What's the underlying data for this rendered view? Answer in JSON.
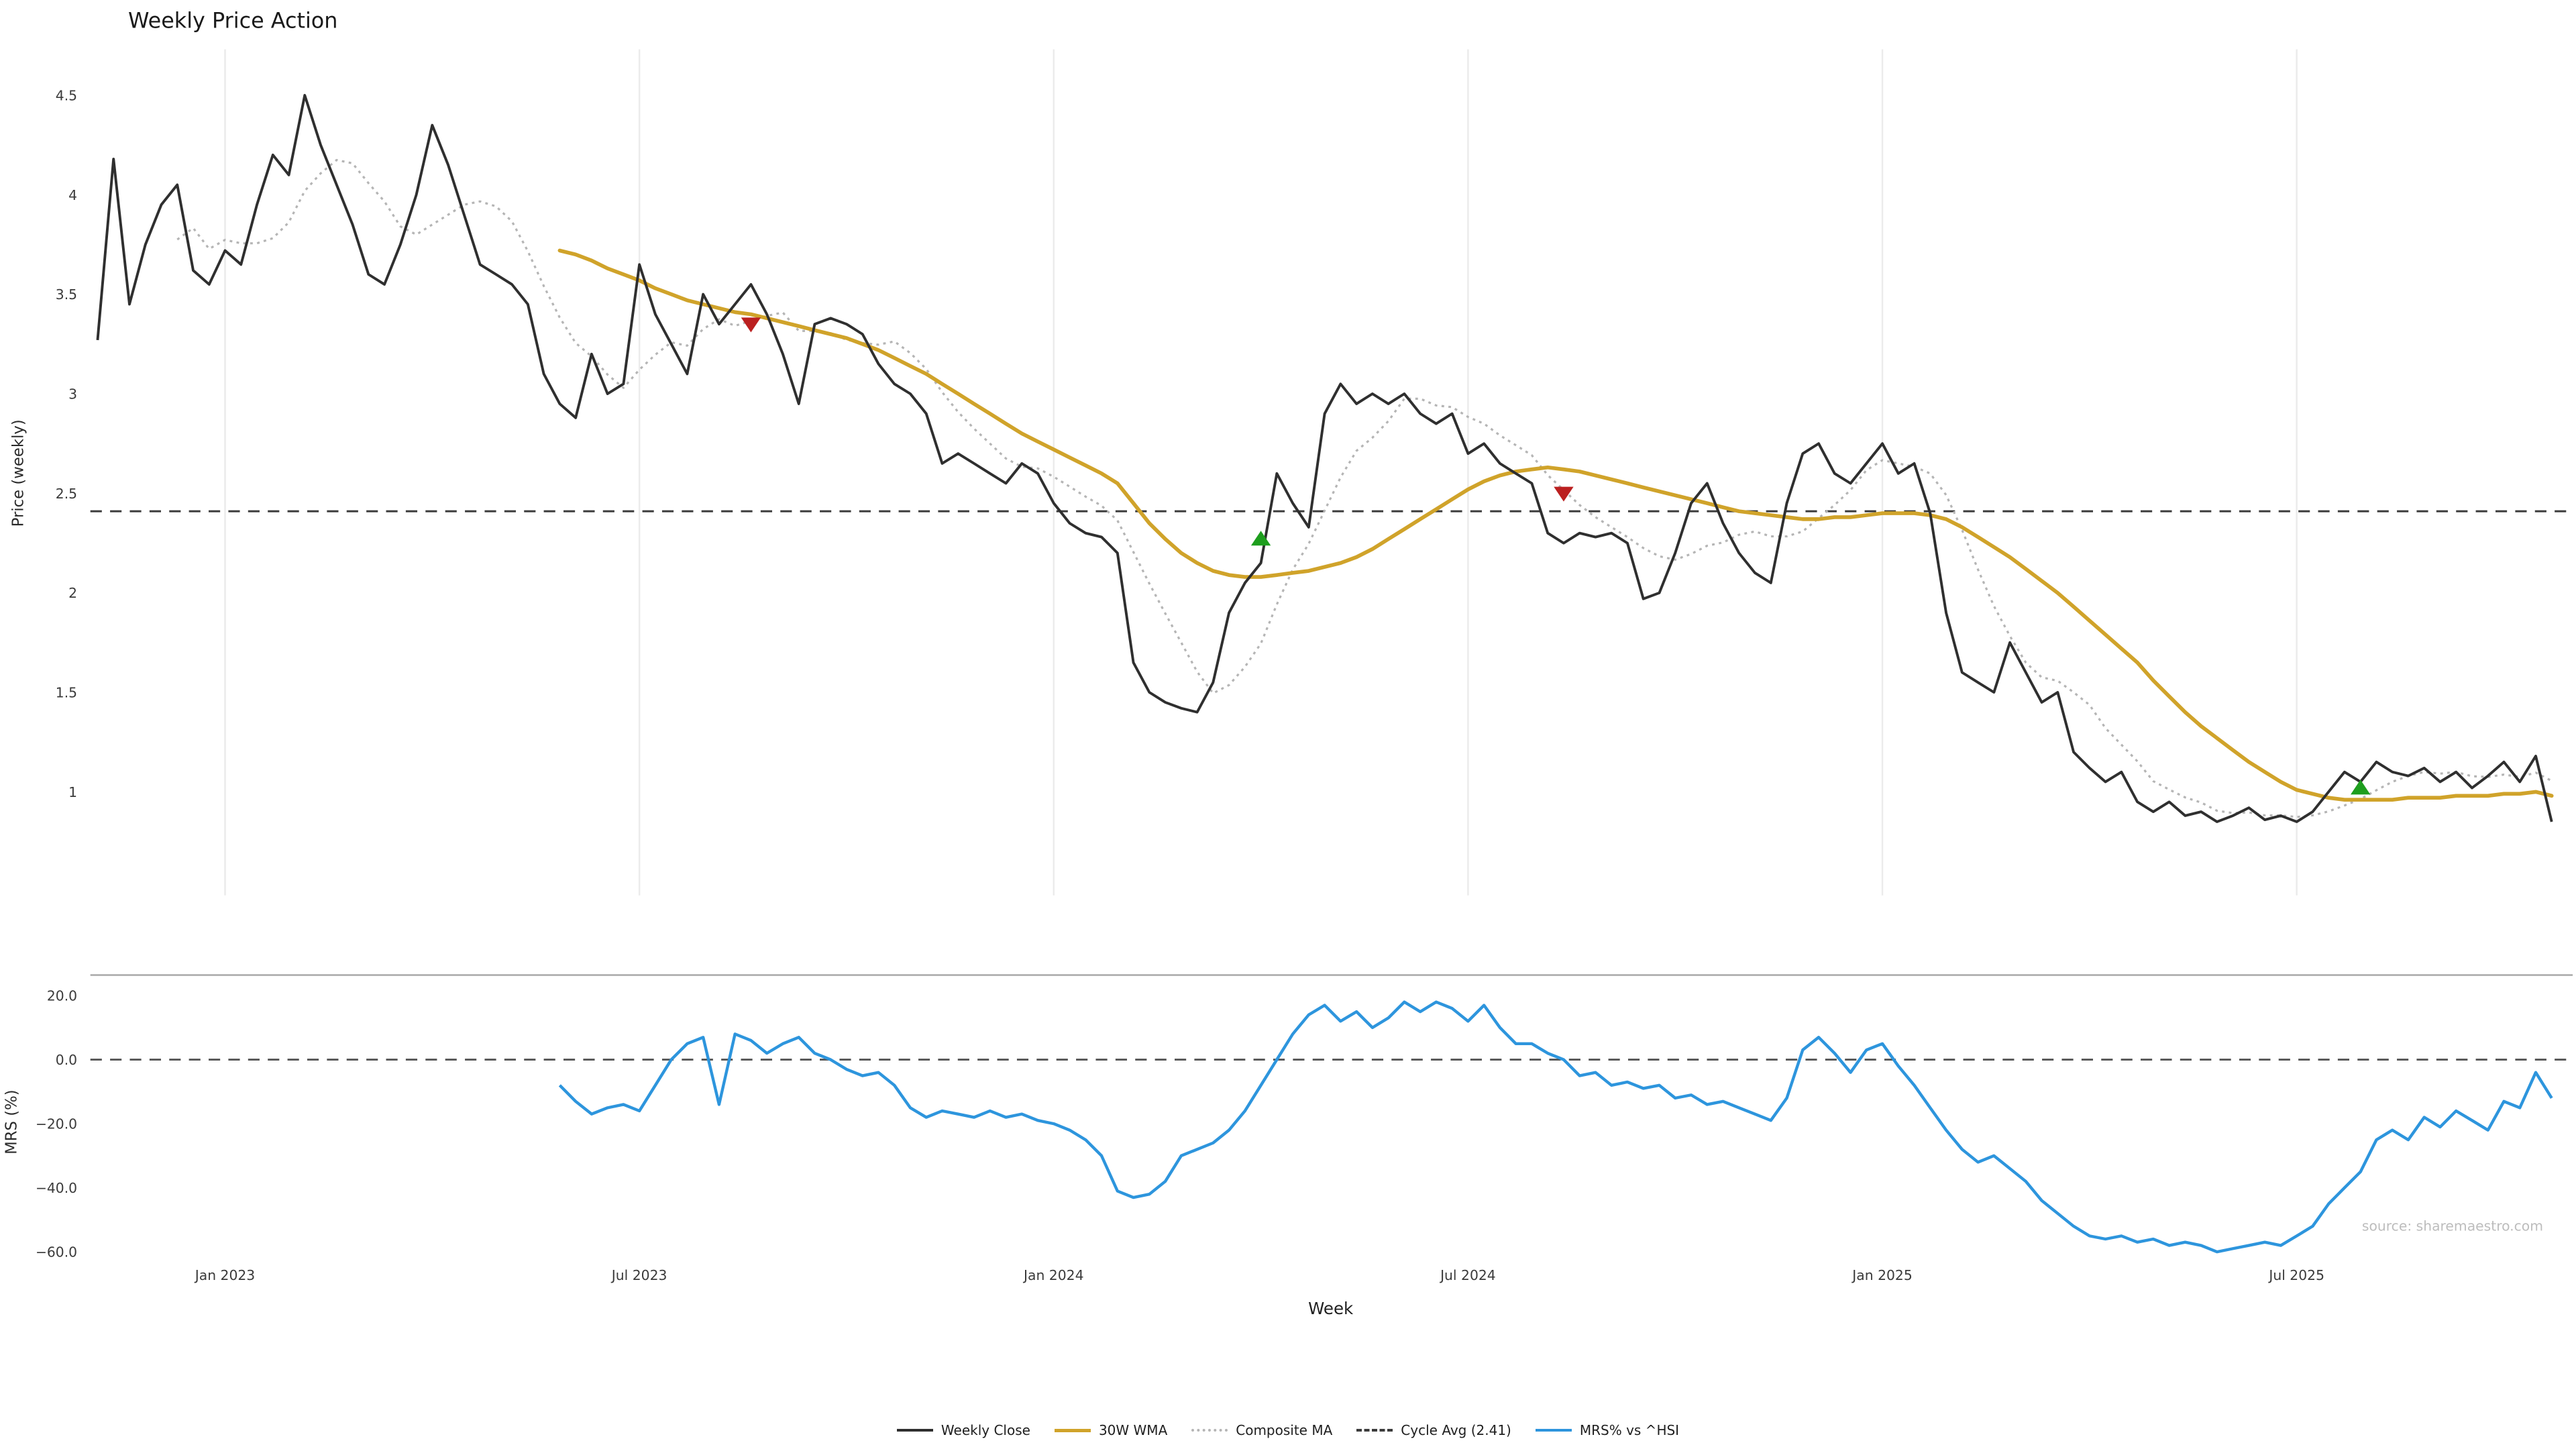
{
  "chart_data": {
    "type": "line",
    "title": "Weekly Price Action",
    "xlabel": "Week",
    "source": "source: sharemaestro.com",
    "colors": {
      "buy": "#1e9e1e",
      "sell": "#bb2020",
      "grid": "#ebebeb",
      "dashed": "#3c3c3c"
    },
    "x_ticks": [
      {
        "label": "Jan 2023",
        "week": 8
      },
      {
        "label": "Jul 2023",
        "week": 34
      },
      {
        "label": "Jan 2024",
        "week": 60
      },
      {
        "label": "Jul 2024",
        "week": 86
      },
      {
        "label": "Jan 2025",
        "week": 112
      },
      {
        "label": "Jul 2025",
        "week": 138
      }
    ],
    "weeks_total": 155,
    "panels": [
      {
        "name": "price",
        "ylabel": "Price (weekly)",
        "ylim": [
          0.5,
          4.7
        ],
        "yticks": [
          {
            "value": 4.5,
            "label": "4.5"
          },
          {
            "value": 4.0,
            "label": "4"
          },
          {
            "value": 3.5,
            "label": "3.5"
          },
          {
            "value": 3.0,
            "label": "3"
          },
          {
            "value": 2.5,
            "label": "2.5"
          },
          {
            "value": 2.0,
            "label": "2"
          },
          {
            "value": 1.5,
            "label": "1.5"
          },
          {
            "value": 1.0,
            "label": "1"
          }
        ],
        "cycle_avg": {
          "value": 2.41,
          "label": "Cycle Avg (2.41)"
        },
        "series": [
          {
            "name": "Weekly Close",
            "color": "#2f2f2f",
            "style": "solid",
            "start_week": 0,
            "values": [
              3.27,
              4.18,
              3.45,
              3.75,
              3.95,
              4.05,
              3.62,
              3.55,
              3.72,
              3.65,
              3.95,
              4.2,
              4.1,
              4.5,
              4.25,
              4.05,
              3.85,
              3.6,
              3.55,
              3.75,
              4.0,
              4.35,
              4.15,
              3.9,
              3.65,
              3.6,
              3.55,
              3.45,
              3.1,
              2.95,
              2.88,
              3.2,
              3.0,
              3.05,
              3.65,
              3.4,
              3.25,
              3.1,
              3.5,
              3.35,
              3.45,
              3.55,
              3.4,
              3.2,
              2.95,
              3.35,
              3.38,
              3.35,
              3.3,
              3.15,
              3.05,
              3.0,
              2.9,
              2.65,
              2.7,
              2.65,
              2.6,
              2.55,
              2.65,
              2.6,
              2.45,
              2.35,
              2.3,
              2.28,
              2.2,
              1.65,
              1.5,
              1.45,
              1.42,
              1.4,
              1.55,
              1.9,
              2.05,
              2.15,
              2.6,
              2.45,
              2.33,
              2.9,
              3.05,
              2.95,
              3.0,
              2.95,
              3.0,
              2.9,
              2.85,
              2.9,
              2.7,
              2.75,
              2.65,
              2.6,
              2.55,
              2.3,
              2.25,
              2.3,
              2.28,
              2.3,
              2.25,
              1.97,
              2.0,
              2.2,
              2.45,
              2.55,
              2.35,
              2.2,
              2.1,
              2.05,
              2.45,
              2.7,
              2.75,
              2.6,
              2.55,
              2.65,
              2.75,
              2.6,
              2.65,
              2.4,
              1.9,
              1.6,
              1.55,
              1.5,
              1.75,
              1.6,
              1.45,
              1.5,
              1.2,
              1.12,
              1.05,
              1.1,
              0.95,
              0.9,
              0.95,
              0.88,
              0.9,
              0.85,
              0.88,
              0.92,
              0.86,
              0.88,
              0.85,
              0.9,
              1.0,
              1.1,
              1.05,
              1.15,
              1.1,
              1.08,
              1.12,
              1.05,
              1.1,
              1.02,
              1.08,
              1.15,
              1.05,
              1.18,
              0.85
            ]
          },
          {
            "name": "30W WMA",
            "color": "#d0a32a",
            "style": "solid",
            "start_week": 29,
            "values": [
              3.72,
              3.7,
              3.67,
              3.63,
              3.6,
              3.57,
              3.53,
              3.5,
              3.47,
              3.45,
              3.43,
              3.41,
              3.4,
              3.38,
              3.36,
              3.34,
              3.32,
              3.3,
              3.28,
              3.25,
              3.22,
              3.18,
              3.14,
              3.1,
              3.05,
              3.0,
              2.95,
              2.9,
              2.85,
              2.8,
              2.76,
              2.72,
              2.68,
              2.64,
              2.6,
              2.55,
              2.45,
              2.35,
              2.27,
              2.2,
              2.15,
              2.11,
              2.09,
              2.08,
              2.08,
              2.09,
              2.1,
              2.11,
              2.13,
              2.15,
              2.18,
              2.22,
              2.27,
              2.32,
              2.37,
              2.42,
              2.47,
              2.52,
              2.56,
              2.59,
              2.61,
              2.62,
              2.63,
              2.62,
              2.61,
              2.59,
              2.57,
              2.55,
              2.53,
              2.51,
              2.49,
              2.47,
              2.45,
              2.43,
              2.41,
              2.4,
              2.39,
              2.38,
              2.37,
              2.37,
              2.38,
              2.38,
              2.39,
              2.4,
              2.4,
              2.4,
              2.39,
              2.37,
              2.33,
              2.28,
              2.23,
              2.18,
              2.12,
              2.06,
              2.0,
              1.93,
              1.86,
              1.79,
              1.72,
              1.65,
              1.56,
              1.48,
              1.4,
              1.33,
              1.27,
              1.21,
              1.15,
              1.1,
              1.05,
              1.01,
              0.99,
              0.97,
              0.96,
              0.96,
              0.96,
              0.96,
              0.97,
              0.97,
              0.97,
              0.98,
              0.98,
              0.98,
              0.99,
              0.99,
              1.0,
              0.98
            ]
          },
          {
            "name": "Composite MA",
            "color": "#b5b5b5",
            "style": "dotted",
            "derived_from": "Weekly Close",
            "window": 6
          }
        ],
        "markers": [
          {
            "type": "sell",
            "shape": "triangle-down",
            "week": 41,
            "value": 3.35
          },
          {
            "type": "buy",
            "shape": "triangle-up",
            "week": 73,
            "value": 2.27
          },
          {
            "type": "sell",
            "shape": "triangle-down",
            "week": 92,
            "value": 2.5
          },
          {
            "type": "buy",
            "shape": "triangle-up",
            "week": 142,
            "value": 1.02
          }
        ]
      },
      {
        "name": "mrs",
        "ylabel": "MRS (%)",
        "ylim": [
          -65,
          25
        ],
        "yticks": [
          {
            "value": 20,
            "label": "20.0"
          },
          {
            "value": 0,
            "label": "0.0"
          },
          {
            "value": -20,
            "label": "−20.0"
          },
          {
            "value": -40,
            "label": "−40.0"
          },
          {
            "value": -60,
            "label": "−60.0"
          }
        ],
        "zero_line": {
          "value": 0
        },
        "series": [
          {
            "name": "MRS% vs ^HSI",
            "color": "#2d95dd",
            "style": "solid",
            "start_week": 29,
            "values": [
              -8,
              -13,
              -17,
              -15,
              -14,
              -16,
              -8,
              0,
              5,
              7,
              -14,
              8,
              6,
              2,
              5,
              7,
              2,
              0,
              -3,
              -5,
              -4,
              -8,
              -15,
              -18,
              -16,
              -17,
              -18,
              -16,
              -18,
              -17,
              -19,
              -20,
              -22,
              -25,
              -30,
              -41,
              -43,
              -42,
              -38,
              -30,
              -28,
              -26,
              -22,
              -16,
              -8,
              0,
              8,
              14,
              17,
              12,
              15,
              10,
              13,
              18,
              15,
              18,
              16,
              12,
              17,
              10,
              5,
              5,
              2,
              0,
              -5,
              -4,
              -8,
              -7,
              -9,
              -8,
              -12,
              -11,
              -14,
              -13,
              -15,
              -17,
              -19,
              -12,
              3,
              7,
              2,
              -4,
              3,
              5,
              -2,
              -8,
              -15,
              -22,
              -28,
              -32,
              -30,
              -34,
              -38,
              -44,
              -48,
              -52,
              -55,
              -56,
              -55,
              -57,
              -56,
              -58,
              -57,
              -58,
              -60,
              -59,
              -58,
              -57,
              -58,
              -55,
              -52,
              -45,
              -40,
              -35,
              -25,
              -22,
              -25,
              -18,
              -21,
              -16,
              -19,
              -22,
              -13,
              -15,
              -4,
              -12
            ]
          }
        ]
      }
    ],
    "legend": [
      {
        "label": "Weekly Close"
      },
      {
        "label": "30W WMA"
      },
      {
        "label": "Composite MA"
      },
      {
        "label": "Cycle Avg (2.41)"
      },
      {
        "label": "MRS% vs ^HSI"
      }
    ]
  }
}
